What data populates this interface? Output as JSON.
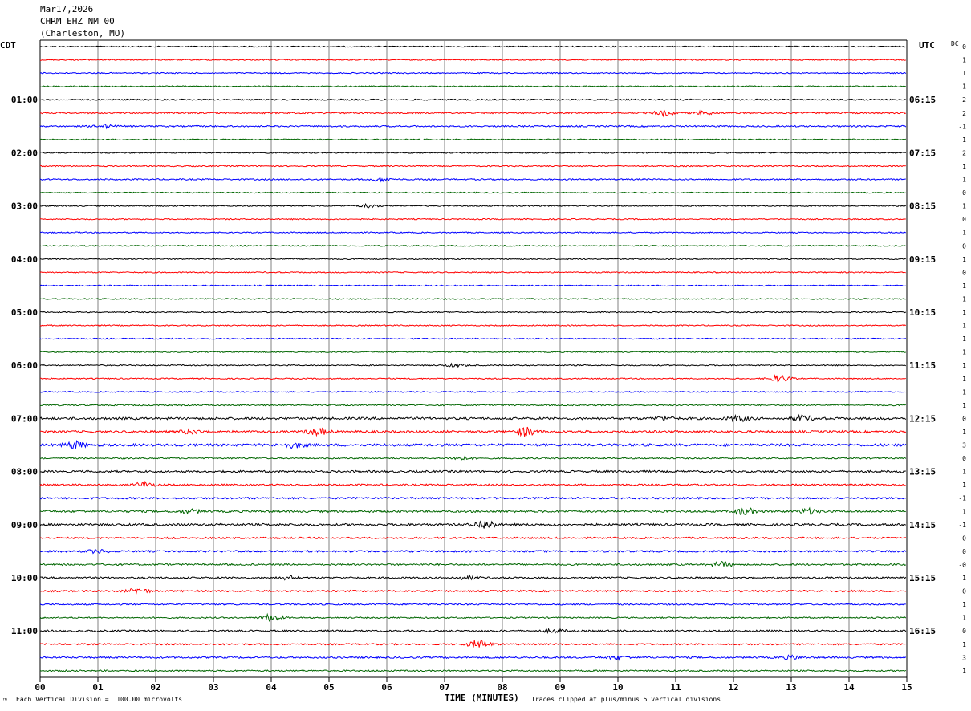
{
  "header": {
    "date": "Mar17,2026",
    "station": "CHRM EHZ NM 00",
    "location": "(Charleston, MO)"
  },
  "left_timezone": "CDT",
  "right_timezone": "UTC",
  "dc_label": "DC",
  "footer": {
    "scale_note": "Each Vertical Division =  100.00 microvolts",
    "axis_title": "TIME (MINUTES)",
    "clip_note": "Traces clipped at plus/minus 5 vertical divisions",
    "corner_mark": "™"
  },
  "chart_data": {
    "type": "line",
    "title": "",
    "xlabel": "TIME (MINUTES)",
    "xlim": [
      0,
      15
    ],
    "x_ticks": [
      "00",
      "01",
      "02",
      "03",
      "04",
      "05",
      "06",
      "07",
      "08",
      "09",
      "10",
      "11",
      "12",
      "13",
      "14",
      "15"
    ],
    "trace_colors": [
      "#000000",
      "#ff0000",
      "#0000ff",
      "#006600"
    ],
    "trace_count": 48,
    "traces_per_hour": 4,
    "left_hour_labels": [
      "01:00",
      "02:00",
      "03:00",
      "04:00",
      "05:00",
      "06:00",
      "07:00",
      "08:00",
      "09:00",
      "10:00",
      "11:00"
    ],
    "right_hour_labels": [
      "06:15",
      "07:15",
      "08:15",
      "09:15",
      "10:15",
      "11:15",
      "12:15",
      "13:15",
      "14:15",
      "15:15",
      "16:15"
    ],
    "dc_offsets": [
      "0",
      "1",
      "1",
      "1",
      "2",
      "2",
      "-1",
      "1",
      "2",
      "1",
      "1",
      "0",
      "1",
      "0",
      "1",
      "0",
      "1",
      "0",
      "1",
      "1",
      "1",
      "1",
      "1",
      "1",
      "1",
      "1",
      "1",
      "1",
      "0",
      "1",
      "3",
      "0",
      "1",
      "1",
      "-1",
      "1",
      "-1",
      "0",
      "0",
      "-0",
      "1",
      "0",
      "1",
      "1",
      "0",
      "1",
      "3",
      "1"
    ],
    "amplitude": [
      1,
      1,
      1,
      1,
      1.2,
      1.3,
      1.3,
      1,
      1,
      1.1,
      1.2,
      1,
      1,
      1,
      1,
      1,
      1,
      1,
      1,
      1,
      1,
      1,
      1,
      1,
      1,
      1,
      1,
      1.2,
      2,
      2,
      2.2,
      1.2,
      1.8,
      1.5,
      1.6,
      1.8,
      2,
      1.5,
      1.6,
      1.5,
      1.5,
      1.5,
      1.3,
      1.2,
      1.6,
      1.4,
      1.5,
      1.3
    ],
    "events": [
      {
        "trace": 5,
        "minute": 10.8,
        "size": 3
      },
      {
        "trace": 5,
        "minute": 11.5,
        "size": 2
      },
      {
        "trace": 6,
        "minute": 1.1,
        "size": 2
      },
      {
        "trace": 10,
        "minute": 5.9,
        "size": 2
      },
      {
        "trace": 12,
        "minute": 5.7,
        "size": 2
      },
      {
        "trace": 24,
        "minute": 7.2,
        "size": 2
      },
      {
        "trace": 25,
        "minute": 12.8,
        "size": 4
      },
      {
        "trace": 28,
        "minute": 12.1,
        "size": 3
      },
      {
        "trace": 28,
        "minute": 13.2,
        "size": 3
      },
      {
        "trace": 28,
        "minute": 10.8,
        "size": 2
      },
      {
        "trace": 29,
        "minute": 4.8,
        "size": 4
      },
      {
        "trace": 29,
        "minute": 8.4,
        "size": 5
      },
      {
        "trace": 29,
        "minute": 2.6,
        "size": 2
      },
      {
        "trace": 30,
        "minute": 0.6,
        "size": 4
      },
      {
        "trace": 30,
        "minute": 4.4,
        "size": 3
      },
      {
        "trace": 31,
        "minute": 7.3,
        "size": 2
      },
      {
        "trace": 33,
        "minute": 1.8,
        "size": 3
      },
      {
        "trace": 35,
        "minute": 12.2,
        "size": 4
      },
      {
        "trace": 35,
        "minute": 13.3,
        "size": 3
      },
      {
        "trace": 35,
        "minute": 2.6,
        "size": 2
      },
      {
        "trace": 36,
        "minute": 7.7,
        "size": 5
      },
      {
        "trace": 38,
        "minute": 1.0,
        "size": 2
      },
      {
        "trace": 39,
        "minute": 11.8,
        "size": 3
      },
      {
        "trace": 40,
        "minute": 4.3,
        "size": 2
      },
      {
        "trace": 40,
        "minute": 7.4,
        "size": 2
      },
      {
        "trace": 41,
        "minute": 1.7,
        "size": 3
      },
      {
        "trace": 43,
        "minute": 4.0,
        "size": 4
      },
      {
        "trace": 44,
        "minute": 8.9,
        "size": 2
      },
      {
        "trace": 45,
        "minute": 7.6,
        "size": 5
      },
      {
        "trace": 46,
        "minute": 10.0,
        "size": 2
      },
      {
        "trace": 46,
        "minute": 13.0,
        "size": 2
      }
    ]
  }
}
